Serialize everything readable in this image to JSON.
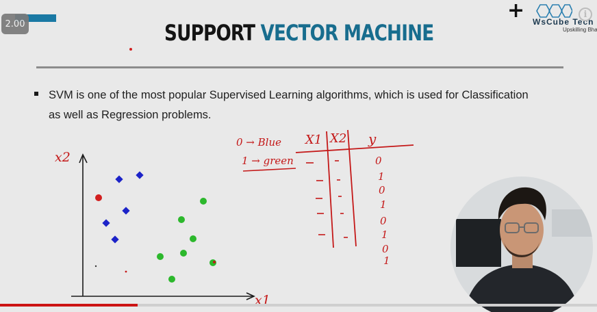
{
  "player": {
    "speed": "2.00",
    "progress": 0.23
  },
  "slide": {
    "title_part1": "SUPPORT",
    "title_part2": "VECTOR MACHINE",
    "bullet_text": "SVM is one of the most popular Supervised Learning algorithms, which is used for Classification as well as Regression problems."
  },
  "brand": {
    "name": "WsCube Tech",
    "tagline": "Upskilling Bharat"
  },
  "whiteboard": {
    "y_axis_label": "x2",
    "x_axis_label": "x1",
    "legend_line1": "0 → Blue",
    "legend_line2": "1 → green",
    "table_headers": [
      "X1",
      "X2",
      "y"
    ],
    "table_y_values": [
      "0",
      "1",
      "0",
      "1",
      "0",
      "1",
      "0",
      "1"
    ]
  },
  "colors": {
    "title_accent": "#186d8e",
    "ink": "#c41818",
    "blue_points": "#1c23c8",
    "green_points": "#2cb82c",
    "progress": "#cc1414"
  },
  "icons": {
    "add": "plus-icon",
    "info": "info-icon"
  }
}
